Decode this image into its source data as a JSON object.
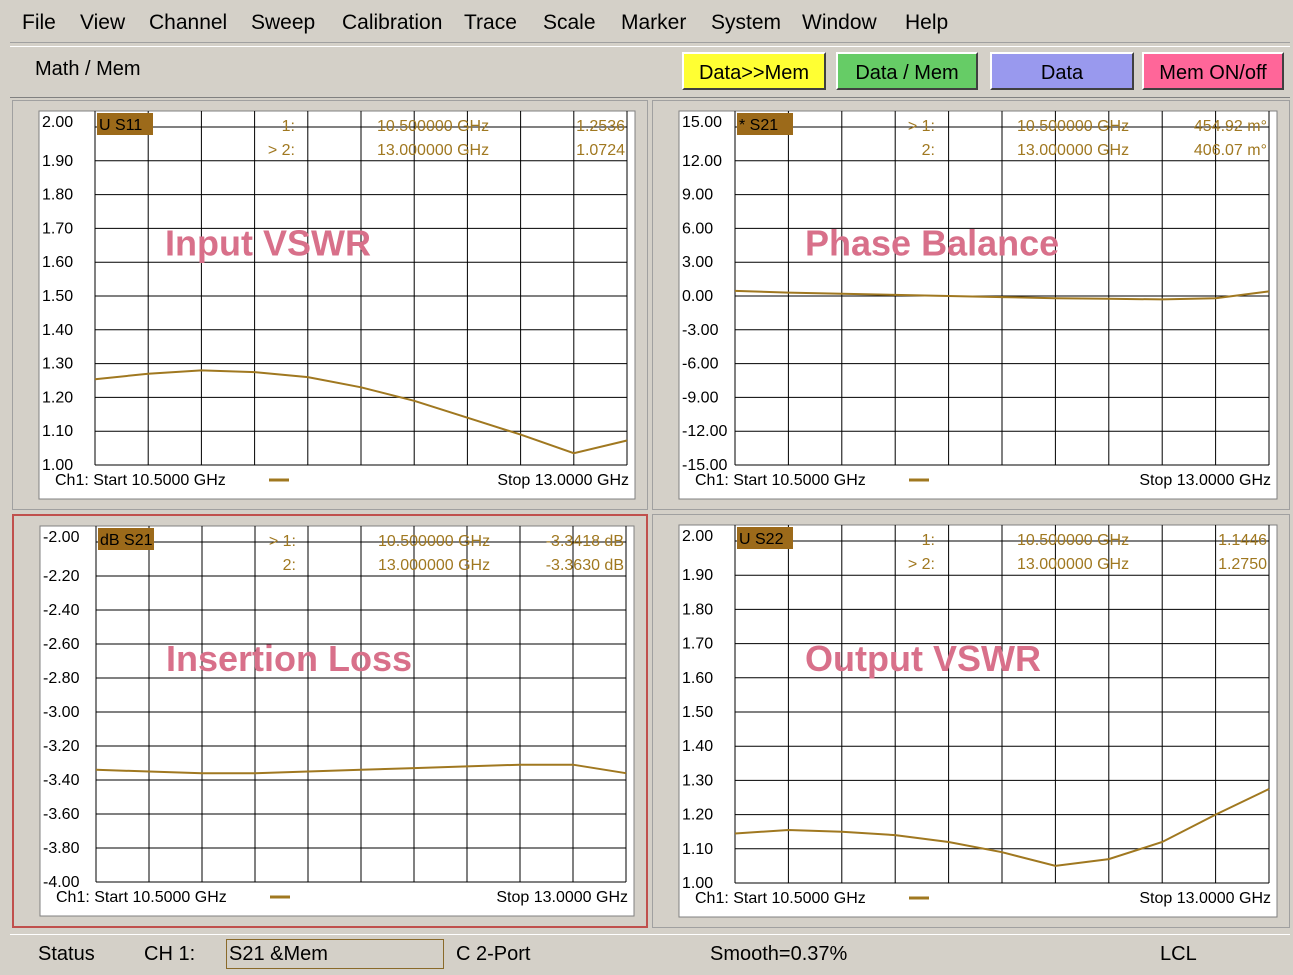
{
  "menu": [
    "File",
    "View",
    "Channel",
    "Sweep",
    "Calibration",
    "Trace",
    "Scale",
    "Marker",
    "System",
    "Window",
    "Help"
  ],
  "toolbar": {
    "label": "Math / Mem",
    "buttons": [
      {
        "label": "Data>>Mem",
        "color": "#ffff33"
      },
      {
        "label": "Data / Mem",
        "color": "#66cc66"
      },
      {
        "label": "Data",
        "color": "#9999ee"
      },
      {
        "label": "Mem ON/off",
        "color": "#ff6699"
      }
    ]
  },
  "colors": {
    "trace": "#a07820",
    "badge": "#9c6a1a",
    "overlay_label": "#d8708a",
    "selected_border": "#c0504d"
  },
  "panes": [
    {
      "trace_badge": "U S11",
      "overlay_label": "Input VSWR",
      "y_ticks": [
        "2.00",
        "1.90",
        "1.80",
        "1.70",
        "1.60",
        "1.50",
        "1.40",
        "1.30",
        "1.20",
        "1.10",
        "1.00"
      ],
      "markers": [
        {
          "id": "1:",
          "prefix": "",
          "freq": "10.500000 GHz",
          "value": "1.2536"
        },
        {
          "id": "2:",
          "prefix": ">",
          "freq": "13.000000 GHz",
          "value": "1.0724"
        }
      ],
      "footer_start": "Ch1: Start  10.5000 GHz",
      "footer_stop": "Stop  13.0000 GHz",
      "chart_data": {
        "type": "line",
        "x": [
          10.5,
          10.75,
          11.0,
          11.25,
          11.5,
          11.75,
          12.0,
          12.25,
          12.5,
          12.75,
          13.0
        ],
        "y": [
          1.2536,
          1.27,
          1.28,
          1.275,
          1.26,
          1.23,
          1.19,
          1.14,
          1.09,
          1.035,
          1.0724
        ],
        "ylim": [
          1.0,
          2.0
        ],
        "xlim": [
          10.5,
          13.0
        ]
      },
      "selected": false
    },
    {
      "trace_badge": "* S21",
      "overlay_label": "Phase Balance",
      "y_ticks": [
        "15.00",
        "12.00",
        "9.00",
        "6.00",
        "3.00",
        "0.00",
        "-3.00",
        "-6.00",
        "-9.00",
        "-12.00",
        "-15.00"
      ],
      "markers": [
        {
          "id": "1:",
          "prefix": ">",
          "freq": "10.500000 GHz",
          "value": "454.92 m°"
        },
        {
          "id": "2:",
          "prefix": "",
          "freq": "13.000000 GHz",
          "value": "406.07 m°"
        }
      ],
      "footer_start": "Ch1: Start  10.5000 GHz",
      "footer_stop": "Stop  13.0000 GHz",
      "chart_data": {
        "type": "line",
        "x": [
          10.5,
          10.75,
          11.0,
          11.25,
          11.5,
          11.75,
          12.0,
          12.25,
          12.5,
          12.75,
          13.0
        ],
        "y": [
          0.45,
          0.3,
          0.2,
          0.1,
          0.0,
          -0.1,
          -0.2,
          -0.25,
          -0.3,
          -0.2,
          0.41
        ],
        "ylim": [
          -15,
          15
        ],
        "xlim": [
          10.5,
          13.0
        ]
      },
      "selected": false
    },
    {
      "trace_badge": "dB S21",
      "overlay_label": "Insertion Loss",
      "y_ticks": [
        "-2.00",
        "-2.20",
        "-2.40",
        "-2.60",
        "-2.80",
        "-3.00",
        "-3.20",
        "-3.40",
        "-3.60",
        "-3.80",
        "-4.00"
      ],
      "markers": [
        {
          "id": "1:",
          "prefix": ">",
          "freq": "10.500000 GHz",
          "value": "-3.3418 dB"
        },
        {
          "id": "2:",
          "prefix": "",
          "freq": "13.000000 GHz",
          "value": "-3.3630 dB"
        }
      ],
      "footer_start": "Ch1: Start  10.5000 GHz",
      "footer_stop": "Stop  13.0000 GHz",
      "chart_data": {
        "type": "line",
        "x": [
          10.5,
          10.75,
          11.0,
          11.25,
          11.5,
          11.75,
          12.0,
          12.25,
          12.5,
          12.75,
          13.0
        ],
        "y": [
          -3.34,
          -3.35,
          -3.36,
          -3.36,
          -3.35,
          -3.34,
          -3.33,
          -3.32,
          -3.31,
          -3.31,
          -3.36
        ],
        "ylim": [
          -4.0,
          -2.0
        ],
        "xlim": [
          10.5,
          13.0
        ]
      },
      "selected": true
    },
    {
      "trace_badge": "U S22",
      "overlay_label": "Output VSWR",
      "y_ticks": [
        "2.00",
        "1.90",
        "1.80",
        "1.70",
        "1.60",
        "1.50",
        "1.40",
        "1.30",
        "1.20",
        "1.10",
        "1.00"
      ],
      "markers": [
        {
          "id": "1:",
          "prefix": "",
          "freq": "10.500000 GHz",
          "value": "1.1446"
        },
        {
          "id": "2:",
          "prefix": ">",
          "freq": "13.000000 GHz",
          "value": "1.2750"
        }
      ],
      "footer_start": "Ch1: Start  10.5000 GHz",
      "footer_stop": "Stop  13.0000 GHz",
      "chart_data": {
        "type": "line",
        "x": [
          10.5,
          10.75,
          11.0,
          11.25,
          11.5,
          11.75,
          12.0,
          12.25,
          12.5,
          12.75,
          13.0
        ],
        "y": [
          1.1446,
          1.155,
          1.15,
          1.14,
          1.12,
          1.09,
          1.05,
          1.07,
          1.12,
          1.2,
          1.275
        ],
        "ylim": [
          1.0,
          2.0
        ],
        "xlim": [
          10.5,
          13.0
        ]
      },
      "selected": false
    }
  ],
  "status": {
    "label": "Status",
    "channel": "CH 1:",
    "field": "S21 &Mem",
    "port": "C  2-Port",
    "smooth": "Smooth=0.37%",
    "mode": "LCL"
  }
}
